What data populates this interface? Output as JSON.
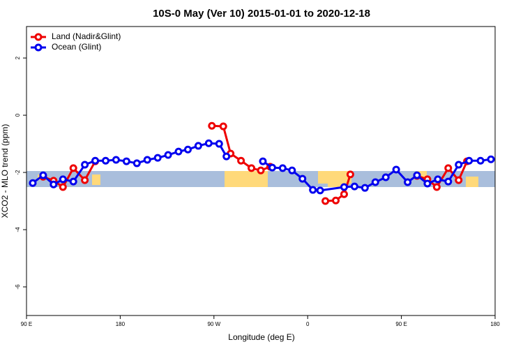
{
  "chart_data": {
    "type": "line",
    "title": "10S-0 May (Ver 10)   2015-01-01 to 2020-12-18",
    "xlabel": "Longitude (deg E)",
    "ylabel": "XCO2 - MLO trend (ppm)",
    "xlim": [
      90,
      540
    ],
    "ylim": [
      -7,
      3.1
    ],
    "xticks": [
      {
        "value": 90,
        "label": "90 E"
      },
      {
        "value": 180,
        "label": "180"
      },
      {
        "value": 270,
        "label": "90 W"
      },
      {
        "value": 360,
        "label": "0"
      },
      {
        "value": 450,
        "label": "90 E"
      },
      {
        "value": 540,
        "label": "180"
      }
    ],
    "yticks": [
      2,
      0,
      -2,
      -4,
      -6
    ],
    "legend": "top-left",
    "series": [
      {
        "name": "Land (Nadir&Glint)",
        "color": "#ee0000",
        "x": [
          106,
          116,
          125,
          135,
          146,
          156,
          null,
          268,
          279,
          286,
          296,
          306,
          315,
          324,
          null,
          377,
          387,
          395,
          401,
          null,
          465,
          475,
          484,
          495,
          505,
          513
        ],
        "values": [
          -2.15,
          -2.29,
          -2.51,
          -1.85,
          -2.27,
          -1.61,
          null,
          -0.37,
          -0.39,
          -1.34,
          -1.59,
          -1.85,
          -1.93,
          -1.8,
          null,
          -3.0,
          -2.98,
          -2.76,
          -2.07,
          null,
          -2.12,
          -2.24,
          -2.51,
          -1.85,
          -2.27,
          -1.61
        ]
      },
      {
        "name": "Ocean (Glint)",
        "color": "#0000ee",
        "x": [
          96,
          106,
          116,
          125,
          135,
          146,
          156,
          166,
          176,
          186,
          196,
          206,
          216,
          226,
          236,
          245,
          255,
          265,
          275,
          282,
          null,
          317,
          326,
          336,
          345,
          355,
          365,
          372,
          395,
          405,
          415,
          425,
          435,
          445,
          456,
          465,
          475,
          485,
          495,
          505,
          515,
          526,
          536
        ],
        "values": [
          -2.37,
          -2.1,
          -2.42,
          -2.24,
          -2.32,
          -1.73,
          -1.59,
          -1.59,
          -1.56,
          -1.61,
          -1.68,
          -1.56,
          -1.49,
          -1.39,
          -1.27,
          -1.2,
          -1.07,
          -0.98,
          -1.0,
          -1.44,
          null,
          -1.61,
          -1.83,
          -1.85,
          -1.93,
          -2.22,
          -2.61,
          -2.63,
          -2.51,
          -2.49,
          -2.54,
          -2.34,
          -2.17,
          -1.9,
          -2.34,
          -2.1,
          -2.39,
          -2.24,
          -2.32,
          -1.73,
          -1.59,
          -1.59,
          -1.54
        ]
      }
    ]
  }
}
